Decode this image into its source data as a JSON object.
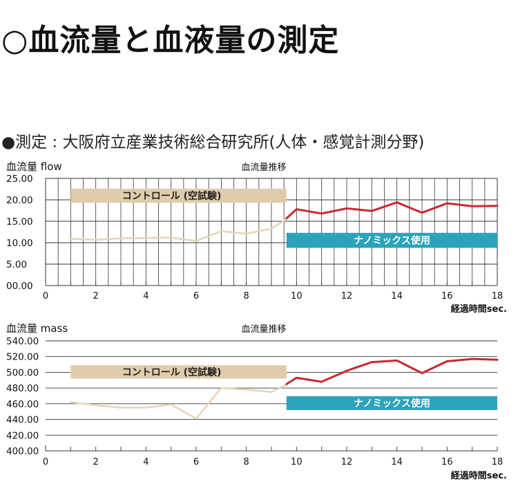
{
  "page": {
    "title": "○血流量と血液量の測定",
    "source": "●測定 : 大阪府立産業技術総合研究所(人体・感覚計測分野)"
  },
  "colors": {
    "control_line": "#e7d4b6",
    "nano_line": "#c8282f",
    "control_band": "#e0ccaa",
    "nano_band": "#2ba3bb",
    "grid": "#333333"
  },
  "chart_data": [
    {
      "type": "line",
      "ylabel": "血流量 flow",
      "title": "血流量推移",
      "xlabel": "経過時間sec.",
      "xlim": [
        0,
        18
      ],
      "ylim": [
        0,
        25
      ],
      "x_ticks": [
        "0",
        "2",
        "4",
        "6",
        "8",
        "10",
        "12",
        "14",
        "16",
        "18"
      ],
      "y_ticks": [
        "00.00",
        "5.00",
        "10.00",
        "15.00",
        "20.00",
        "25.00"
      ],
      "vertical_grid_step": 0.5,
      "grid": true,
      "bands": [
        {
          "label": "コントロール (空試験)",
          "x": [
            1,
            9.6
          ],
          "y": [
            19.3,
            22.6
          ],
          "kind": "control"
        },
        {
          "label": "ナノミックス使用",
          "x": [
            9.6,
            18
          ],
          "y": [
            8.8,
            12.3
          ],
          "kind": "nano"
        }
      ],
      "series": [
        {
          "kind": "control",
          "x": [
            1,
            2,
            3,
            4,
            5,
            6,
            7,
            8,
            9,
            9.6
          ],
          "values": [
            10.9,
            10.7,
            11.0,
            11.1,
            11.2,
            10.4,
            12.7,
            12.1,
            13.3,
            15.5
          ]
        },
        {
          "kind": "nano",
          "x": [
            9.6,
            10,
            11,
            12,
            13,
            14,
            15,
            16,
            17,
            18
          ],
          "values": [
            15.7,
            17.8,
            16.8,
            18.0,
            17.4,
            19.4,
            17.0,
            19.2,
            18.5,
            18.6
          ]
        }
      ]
    },
    {
      "type": "line",
      "ylabel": "血流量 mass",
      "title": "血流量推移",
      "xlabel": "経過時間sec.",
      "xlim": [
        0,
        18
      ],
      "ylim": [
        400,
        540
      ],
      "x_ticks": [
        "0",
        "2",
        "4",
        "6",
        "8",
        "10",
        "12",
        "14",
        "16",
        "18"
      ],
      "y_ticks": [
        "400.00",
        "420.00",
        "440.00",
        "460.00",
        "480.00",
        "500.00",
        "520.00",
        "540.00"
      ],
      "vertical_grid_step": null,
      "grid": true,
      "bands": [
        {
          "label": "コントロール (空試験)",
          "x": [
            1,
            9.6
          ],
          "y": [
            492,
            509
          ],
          "kind": "control"
        },
        {
          "label": "ナノミックス使用",
          "x": [
            9.6,
            18
          ],
          "y": [
            452,
            469.5
          ],
          "kind": "nano"
        }
      ],
      "series": [
        {
          "kind": "control",
          "x": [
            1,
            2,
            3,
            4,
            5,
            6,
            7,
            8,
            9,
            9.6
          ],
          "values": [
            462,
            458,
            455,
            455,
            459,
            441,
            480,
            478,
            475,
            484
          ]
        },
        {
          "kind": "nano",
          "x": [
            9.6,
            10,
            11,
            12,
            13,
            14,
            15,
            16,
            17,
            18
          ],
          "values": [
            485,
            493,
            488,
            502,
            513,
            515,
            499,
            514,
            517,
            516
          ]
        }
      ]
    }
  ]
}
